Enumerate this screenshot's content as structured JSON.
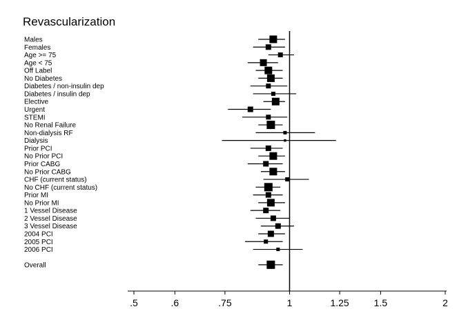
{
  "chart_data": {
    "type": "forest",
    "title": "Revascularization",
    "xlabel": "",
    "ylabel": "",
    "x_scale": "log",
    "reference_line": 1,
    "xticks": [
      0.5,
      0.6,
      0.75,
      1,
      1.25,
      1.5,
      2
    ],
    "xtick_labels": [
      ".5",
      ".6",
      ".75",
      "1",
      "1.25",
      "1.5",
      "2"
    ],
    "xlim": [
      0.5,
      2
    ],
    "grid": false,
    "rows": [
      {
        "label": "Males",
        "estimate": 0.93,
        "lower": 0.87,
        "upper": 0.98,
        "weight": 0.9
      },
      {
        "label": "Females",
        "estimate": 0.91,
        "lower": 0.85,
        "upper": 0.98,
        "weight": 0.6
      },
      {
        "label": "Age >= 75",
        "estimate": 0.96,
        "lower": 0.91,
        "upper": 1.02,
        "weight": 0.5
      },
      {
        "label": "Age < 75",
        "estimate": 0.89,
        "lower": 0.83,
        "upper": 0.95,
        "weight": 0.8
      },
      {
        "label": "Off Label",
        "estimate": 0.91,
        "lower": 0.86,
        "upper": 0.97,
        "weight": 0.9
      },
      {
        "label": "No Diabetes",
        "estimate": 0.92,
        "lower": 0.87,
        "upper": 0.97,
        "weight": 0.9
      },
      {
        "label": "Diabetes / non-insulin dep",
        "estimate": 0.91,
        "lower": 0.84,
        "upper": 0.99,
        "weight": 0.5
      },
      {
        "label": "Diabetes / insulin dep",
        "estimate": 0.93,
        "lower": 0.85,
        "upper": 1.03,
        "weight": 0.4
      },
      {
        "label": "Elective",
        "estimate": 0.94,
        "lower": 0.89,
        "upper": 0.98,
        "weight": 0.9
      },
      {
        "label": "Urgent",
        "estimate": 0.84,
        "lower": 0.76,
        "upper": 0.92,
        "weight": 0.6
      },
      {
        "label": "STEMI",
        "estimate": 0.91,
        "lower": 0.81,
        "upper": 0.99,
        "weight": 0.5
      },
      {
        "label": "No Renal Failure",
        "estimate": 0.92,
        "lower": 0.87,
        "upper": 0.97,
        "weight": 1.0
      },
      {
        "label": "Non-dialysis RF",
        "estimate": 0.98,
        "lower": 0.86,
        "upper": 1.12,
        "weight": 0.3
      },
      {
        "label": "Dialysis",
        "estimate": 0.98,
        "lower": 0.74,
        "upper": 1.23,
        "weight": 0.15
      },
      {
        "label": "Prior PCI",
        "estimate": 0.91,
        "lower": 0.84,
        "upper": 0.97,
        "weight": 0.6
      },
      {
        "label": "No Prior PCI",
        "estimate": 0.93,
        "lower": 0.87,
        "upper": 0.98,
        "weight": 0.9
      },
      {
        "label": "Prior CABG",
        "estimate": 0.9,
        "lower": 0.83,
        "upper": 0.97,
        "weight": 0.6
      },
      {
        "label": "No Prior CABG",
        "estimate": 0.93,
        "lower": 0.88,
        "upper": 0.98,
        "weight": 0.9
      },
      {
        "label": "CHF (current status)",
        "estimate": 0.99,
        "lower": 0.89,
        "upper": 1.09,
        "weight": 0.4
      },
      {
        "label": "No CHF (current status)",
        "estimate": 0.91,
        "lower": 0.86,
        "upper": 0.96,
        "weight": 1.0
      },
      {
        "label": "Prior MI",
        "estimate": 0.91,
        "lower": 0.85,
        "upper": 0.97,
        "weight": 0.6
      },
      {
        "label": "No Prior MI",
        "estimate": 0.92,
        "lower": 0.87,
        "upper": 0.98,
        "weight": 0.9
      },
      {
        "label": "1 Vessel Disease",
        "estimate": 0.9,
        "lower": 0.84,
        "upper": 0.96,
        "weight": 0.6
      },
      {
        "label": "2 Vessel Disease",
        "estimate": 0.93,
        "lower": 0.86,
        "upper": 1.0,
        "weight": 0.6
      },
      {
        "label": "3 Vessel Disease",
        "estimate": 0.95,
        "lower": 0.88,
        "upper": 1.02,
        "weight": 0.6
      },
      {
        "label": "2004 PCI",
        "estimate": 0.92,
        "lower": 0.87,
        "upper": 0.98,
        "weight": 0.7
      },
      {
        "label": "2005 PCI",
        "estimate": 0.9,
        "lower": 0.82,
        "upper": 0.97,
        "weight": 0.4
      },
      {
        "label": "2006 PCI",
        "estimate": 0.95,
        "lower": 0.85,
        "upper": 1.06,
        "weight": 0.3
      },
      {
        "label": "Overall",
        "estimate": 0.92,
        "lower": 0.87,
        "upper": 0.97,
        "weight": 1.0,
        "separated": true
      }
    ]
  }
}
